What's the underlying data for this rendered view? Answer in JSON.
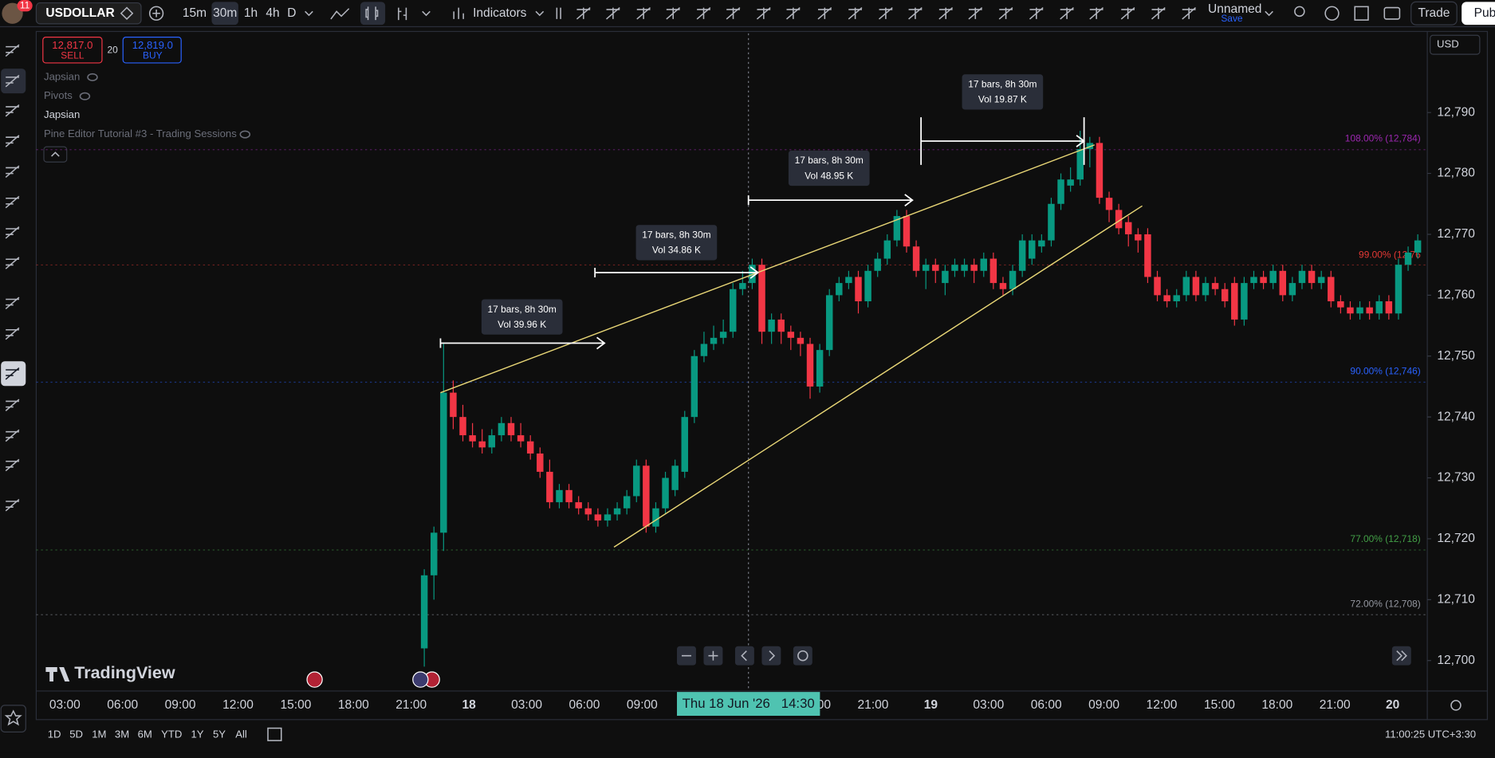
{
  "toolbar": {
    "notification_count": "11",
    "symbol": "USDOLLAR",
    "intervals": [
      "15m",
      "30m",
      "1h",
      "4h",
      "D"
    ],
    "active_interval": "30m",
    "indicators": "Indicators",
    "layout_name": "Unnamed",
    "layout_status": "Save",
    "trade": "Trade",
    "publish": "Publ"
  },
  "legend": {
    "sell_price": "12,817.0",
    "sell": "SELL",
    "spread": "20",
    "buy_price": "12,819.0",
    "buy": "BUY",
    "indicators": [
      "Japsian",
      "Pivots",
      "Japsian",
      "Pine Editor Tutorial #3 - Trading Sessions"
    ]
  },
  "chart_data": {
    "type": "candlestick",
    "currency": "USD",
    "watermark": "TradingView",
    "up_color": "#089981",
    "down_color": "#f23645",
    "grid": false,
    "ylim": [
      12695,
      12803
    ],
    "yticks": [
      {
        "value": 12700,
        "label": "12,700"
      },
      {
        "value": 12710,
        "label": "12,710"
      },
      {
        "value": 12720,
        "label": "12,720"
      },
      {
        "value": 12730,
        "label": "12,730"
      },
      {
        "value": 12740,
        "label": "12,740"
      },
      {
        "value": 12750,
        "label": "12,750"
      },
      {
        "value": 12760,
        "label": "12,760"
      },
      {
        "value": 12770,
        "label": "12,770"
      },
      {
        "value": 12780,
        "label": "12,780"
      },
      {
        "value": 12790,
        "label": "12,790"
      }
    ],
    "xticks": [
      "03:00",
      "06:00",
      "09:00",
      "12:00",
      "15:00",
      "18:00",
      "21:00",
      "18",
      "03:00",
      "06:00",
      "09:00",
      null,
      null,
      "18:00",
      "21:00",
      "19",
      "03:00",
      "06:00",
      "09:00",
      "12:00",
      "15:00",
      "18:00",
      "21:00",
      "20"
    ],
    "crosshair_label": "Thu 18 Jun '26   14:30",
    "candles": [
      [
        12702,
        12715,
        12699,
        12714
      ],
      [
        12714,
        12722,
        12710,
        12721
      ],
      [
        12721,
        12752,
        12718,
        12744
      ],
      [
        12744,
        12746,
        12738,
        12740
      ],
      [
        12740,
        12742,
        12736,
        12737
      ],
      [
        12737,
        12739,
        12735,
        12736
      ],
      [
        12736,
        12738,
        12734,
        12735
      ],
      [
        12735,
        12738,
        12734,
        12737
      ],
      [
        12737,
        12740,
        12736,
        12739
      ],
      [
        12739,
        12740,
        12736,
        12737
      ],
      [
        12737,
        12739,
        12735,
        12736
      ],
      [
        12736,
        12737,
        12733,
        12734
      ],
      [
        12734,
        12735,
        12730,
        12731
      ],
      [
        12731,
        12733,
        12725,
        12726
      ],
      [
        12726,
        12729,
        12725,
        12728
      ],
      [
        12728,
        12729,
        12725,
        12726
      ],
      [
        12726,
        12727,
        12724,
        12725
      ],
      [
        12725,
        12726,
        12723,
        12724
      ],
      [
        12724,
        12725,
        12722,
        12723
      ],
      [
        12723,
        12725,
        12722,
        12724
      ],
      [
        12724,
        12726,
        12723,
        12725
      ],
      [
        12725,
        12728,
        12724,
        12727
      ],
      [
        12727,
        12733,
        12726,
        12732
      ],
      [
        12732,
        12733,
        12721,
        12722
      ],
      [
        12722,
        12726,
        12721,
        12725
      ],
      [
        12725,
        12731,
        12724,
        12730
      ],
      [
        12728,
        12733,
        12727,
        12732
      ],
      [
        12731,
        12741,
        12730,
        12740
      ],
      [
        12740,
        12751,
        12739,
        12750
      ],
      [
        12750,
        12754,
        12749,
        12752
      ],
      [
        12752,
        12755,
        12751,
        12753
      ],
      [
        12753,
        12756,
        12752,
        12754
      ],
      [
        12754,
        12762,
        12753,
        12761
      ],
      [
        12761,
        12764,
        12760,
        12762
      ],
      [
        12762,
        12766,
        12761,
        12765
      ],
      [
        12765,
        12766,
        12752,
        12754
      ],
      [
        12754,
        12757,
        12752,
        12756
      ],
      [
        12756,
        12757,
        12752,
        12754
      ],
      [
        12754,
        12755,
        12751,
        12753
      ],
      [
        12753,
        12754,
        12750,
        12752
      ],
      [
        12752,
        12753,
        12743,
        12745
      ],
      [
        12745,
        12752,
        12744,
        12751
      ],
      [
        12751,
        12761,
        12750,
        12760
      ],
      [
        12760,
        12763,
        12759,
        12762
      ],
      [
        12762,
        12764,
        12761,
        12763
      ],
      [
        12763,
        12764,
        12757,
        12759
      ],
      [
        12759,
        12765,
        12758,
        12764
      ],
      [
        12764,
        12767,
        12763,
        12766
      ],
      [
        12766,
        12770,
        12765,
        12769
      ],
      [
        12769,
        12774,
        12768,
        12773
      ],
      [
        12773,
        12774,
        12767,
        12768
      ],
      [
        12768,
        12769,
        12763,
        12764
      ],
      [
        12764,
        12766,
        12761,
        12765
      ],
      [
        12765,
        12766,
        12762,
        12764
      ],
      [
        12762,
        12765,
        12760,
        12764
      ],
      [
        12764,
        12766,
        12763,
        12765
      ],
      [
        12764,
        12766,
        12763,
        12765
      ],
      [
        12765,
        12766,
        12762,
        12764
      ],
      [
        12764,
        12767,
        12763,
        12766
      ],
      [
        12766,
        12767,
        12761,
        12762
      ],
      [
        12762,
        12763,
        12760,
        12761
      ],
      [
        12761,
        12765,
        12760,
        12764
      ],
      [
        12764,
        12770,
        12763,
        12769
      ],
      [
        12766,
        12770,
        12765,
        12769
      ],
      [
        12768,
        12770,
        12767,
        12769
      ],
      [
        12769,
        12776,
        12768,
        12775
      ],
      [
        12775,
        12780,
        12774,
        12779
      ],
      [
        12778,
        12781,
        12777,
        12779
      ],
      [
        12779,
        12787,
        12778,
        12784
      ],
      [
        12784,
        12786,
        12781,
        12785
      ],
      [
        12785,
        12786,
        12775,
        12776
      ],
      [
        12776,
        12777,
        12772,
        12774
      ],
      [
        12774,
        12775,
        12770,
        12771
      ],
      [
        12772,
        12773,
        12768,
        12770
      ],
      [
        12770,
        12771,
        12767,
        12769
      ],
      [
        12770,
        12771,
        12762,
        12763
      ],
      [
        12763,
        12764,
        12759,
        12760
      ],
      [
        12760,
        12761,
        12758,
        12759
      ],
      [
        12759,
        12761,
        12758,
        12760
      ],
      [
        12760,
        12764,
        12759,
        12763
      ],
      [
        12763,
        12764,
        12759,
        12760
      ],
      [
        12760,
        12763,
        12759,
        12762
      ],
      [
        12762,
        12763,
        12760,
        12761
      ],
      [
        12761,
        12762,
        12758,
        12759
      ],
      [
        12762,
        12763,
        12755,
        12756
      ],
      [
        12756,
        12763,
        12755,
        12762
      ],
      [
        12762,
        12764,
        12761,
        12763
      ],
      [
        12763,
        12764,
        12761,
        12762
      ],
      [
        12762,
        12765,
        12761,
        12764
      ],
      [
        12764,
        12765,
        12759,
        12760
      ],
      [
        12760,
        12763,
        12759,
        12762
      ],
      [
        12762,
        12765,
        12761,
        12764
      ],
      [
        12764,
        12765,
        12761,
        12762
      ],
      [
        12762,
        12764,
        12761,
        12763
      ],
      [
        12763,
        12764,
        12758,
        12759
      ],
      [
        12759,
        12760,
        12757,
        12758
      ],
      [
        12758,
        12759,
        12756,
        12757
      ],
      [
        12757,
        12759,
        12756,
        12758
      ],
      [
        12758,
        12759,
        12756,
        12757
      ],
      [
        12757,
        12760,
        12756,
        12759
      ],
      [
        12759,
        12760,
        12756,
        12757
      ],
      [
        12757,
        12766,
        12756,
        12765
      ],
      [
        12765,
        12768,
        12764,
        12767
      ],
      [
        12767,
        12770,
        12766,
        12769
      ]
    ],
    "fib_levels": [
      {
        "label": "108.00% (12,784)",
        "color": "#9c27b0"
      },
      {
        "label": "99.00% (12,76",
        "color": "#e53935"
      },
      {
        "label": "90.00% (12,746)",
        "color": "#2962ff"
      },
      {
        "label": "77.00% (12,718)",
        "color": "#43a047"
      },
      {
        "label": "72.00% (12,708)",
        "color": "#9598a1"
      }
    ],
    "measurements": [
      {
        "bars": "17 bars, 8h 30m",
        "volume": "Vol 39.96 K"
      },
      {
        "bars": "17 bars, 8h 30m",
        "volume": "Vol 34.86 K"
      },
      {
        "bars": "17 bars, 8h 30m",
        "volume": "Vol 48.95 K"
      },
      {
        "bars": "17 bars, 8h 30m",
        "volume": "Vol 19.87 K"
      }
    ]
  },
  "bottom_bar": {
    "ranges": [
      "1D",
      "5D",
      "1M",
      "3M",
      "6M",
      "YTD",
      "1Y",
      "5Y",
      "All"
    ],
    "clock": "11:00:25 UTC+3:30"
  }
}
